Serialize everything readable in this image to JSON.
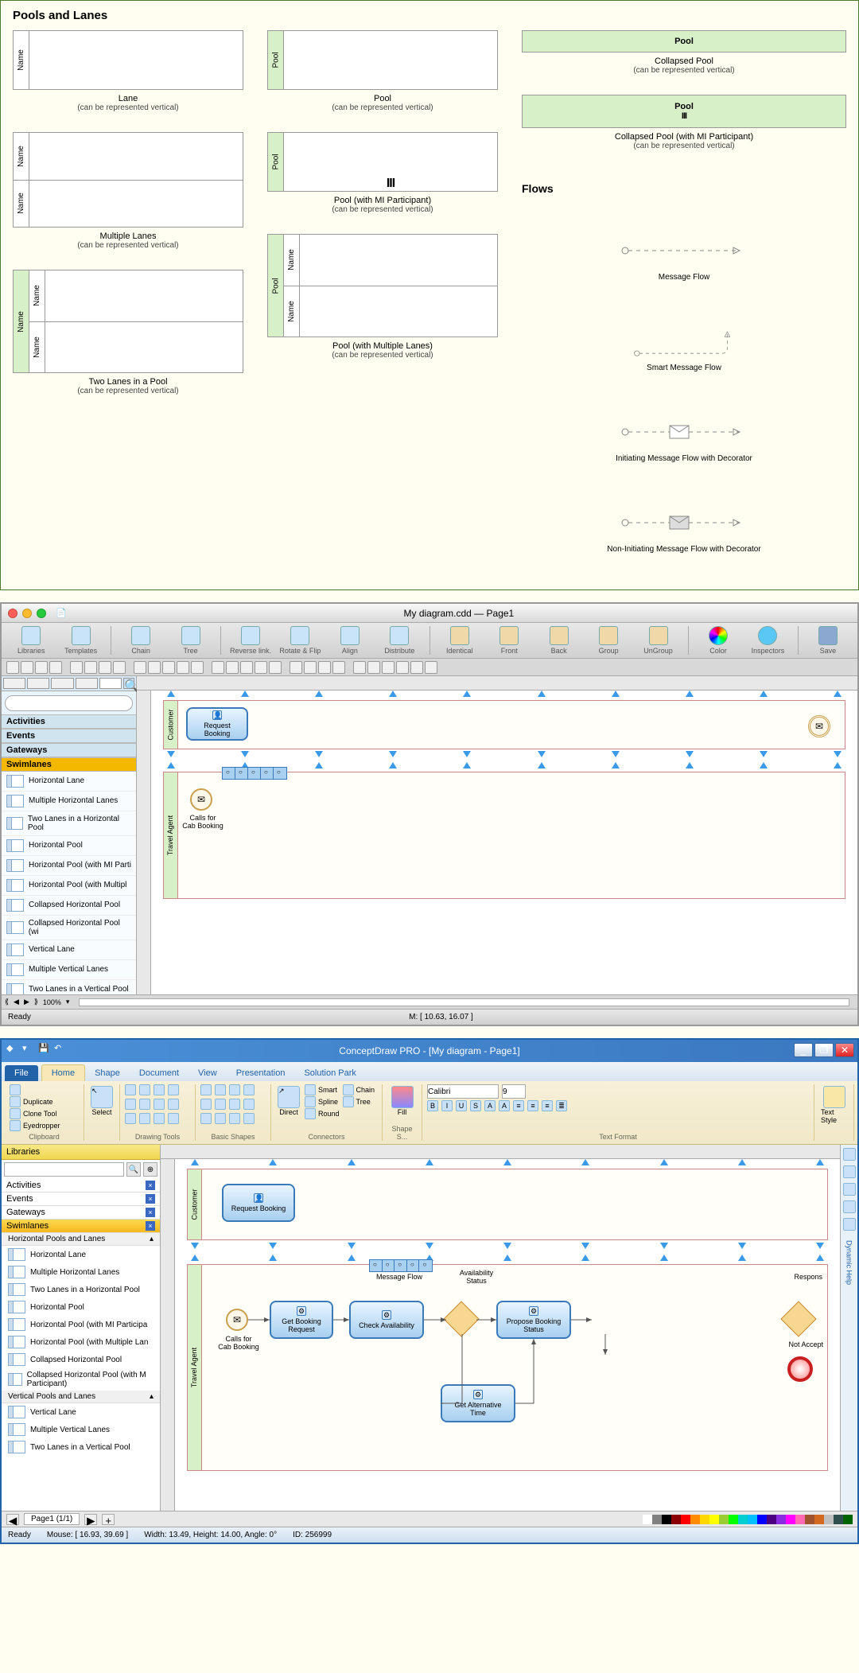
{
  "reference": {
    "title": "Pools and Lanes",
    "canRep": "(can be represented vertical)",
    "shapes": {
      "lane": "Lane",
      "multiLanes": "Multiple Lanes",
      "twoLanesPool": "Two Lanes in a Pool",
      "pool": "Pool",
      "poolMI": "Pool (with MI Participant)",
      "poolMultiLanes": "Pool (with Multiple Lanes)",
      "collapsedPool": "Collapsed Pool",
      "collapsedPoolMI": "Collapsed Pool (with MI Participant)"
    },
    "nameLabel": "Name",
    "poolLabel": "Pool",
    "flowsTitle": "Flows",
    "flows": {
      "msg": "Message Flow",
      "smart": "Smart Message Flow",
      "initDec": "Initiating Message Flow with Decorator",
      "nonInitDec": "Non-Initiating Message Flow with Decorator"
    }
  },
  "mac": {
    "title": "My diagram.cdd — Page1",
    "trafficColors": [
      "#ff5f56",
      "#ffbd2e",
      "#27c93f"
    ],
    "toolbar": [
      "Libraries",
      "Templates",
      "Chain",
      "Tree",
      "Reverse link.",
      "Rotate & Flip",
      "Align",
      "Distribute",
      "Identical",
      "Front",
      "Back",
      "Group",
      "UnGroup",
      "Color",
      "Inspectors",
      "Save"
    ],
    "libs": [
      "Activities",
      "Events",
      "Gateways",
      "Swimlanes"
    ],
    "activeLib": "Swimlanes",
    "shapes": [
      "Horizontal Lane",
      "Multiple Horizontal Lanes",
      "Two Lanes in a Horizontal Pool",
      "Horizontal Pool",
      "Horizontal Pool (with MI Parti",
      "Horizontal Pool (with Multipl",
      "Collapsed Horizontal Pool",
      "Collapsed Horizontal Pool (wi",
      "Vertical Lane",
      "Multiple Vertical Lanes",
      "Two Lanes in a Vertical Pool"
    ],
    "lane1": "Customer",
    "lane2": "Travel Agent",
    "task1": "Request Booking",
    "event1": "✉",
    "event2Label1": "Calls for",
    "event2Label2": "Cab Booking",
    "zoom": "100%",
    "ready": "Ready",
    "mouse": "M: [ 10.63, 16.07 ]"
  },
  "win": {
    "title": "ConceptDraw PRO - [My diagram - Page1]",
    "tabs": [
      "File",
      "Home",
      "Shape",
      "Document",
      "View",
      "Presentation",
      "Solution Park"
    ],
    "activeTab": "Home",
    "ribbon": {
      "clipboard": {
        "title": "Clipboard",
        "items": [
          "Duplicate",
          "Clone Tool",
          "Eyedropper"
        ]
      },
      "select": "Select",
      "drawTitle": "Drawing Tools",
      "basicTitle": "Basic Shapes",
      "direct": "Direct",
      "connItems": [
        "Smart",
        "Spline",
        "Round"
      ],
      "connTitle": "Connectors",
      "connRight": [
        "Chain",
        "Tree"
      ],
      "fill": "Fill",
      "shapeTitle": "Shape S...",
      "font": "Calibri",
      "fontSize": "9",
      "textFmtTitle": "Text Format",
      "textStyle": "Text Style"
    },
    "libTitle": "Libraries",
    "libs": [
      "Activities",
      "Events",
      "Gateways",
      "Swimlanes"
    ],
    "activeLib": "Swimlanes",
    "libSub1": "Horizontal Pools and Lanes",
    "libSub2": "Vertical Pools and Lanes",
    "shapesH": [
      "Horizontal Lane",
      "Multiple Horizontal Lanes",
      "Two Lanes in a Horizontal Pool",
      "Horizontal Pool",
      "Horizontal Pool (with MI Participa",
      "Horizontal Pool (with Multiple Lan",
      "Collapsed Horizontal Pool",
      "Collapsed Horizontal Pool (with M Participant)"
    ],
    "shapesV": [
      "Vertical Lane",
      "Multiple Vertical Lanes",
      "Two Lanes in a Vertical Pool"
    ],
    "lane1": "Customer",
    "lane2": "Travel Agent",
    "tasks": {
      "req": "Request Booking",
      "getReq": "Get Booking Request",
      "check": "Check Availability",
      "propose": "Propose Booking Status",
      "getAlt": "Get Alternative Time"
    },
    "labels": {
      "calls1": "Calls for",
      "calls2": "Cab Booking",
      "msgFlow": "Message Flow",
      "avail": "Availability Status",
      "respons": "Respons",
      "notAccept": "Not Accept"
    },
    "page": "Page1 (1/1)",
    "rightPaneText": "Dynamic Help",
    "status": {
      "ready": "Ready",
      "mouse": "Mouse: [ 16.93, 39.69 ]",
      "dims": "Width: 13.49,  Height: 14.00,  Angle: 0°",
      "id": "ID: 256999"
    },
    "colorStrip": [
      "#ffffff",
      "#808080",
      "#000000",
      "#8b0000",
      "#ff0000",
      "#ff8c00",
      "#ffd700",
      "#ffff00",
      "#9acd32",
      "#00ff00",
      "#00ced1",
      "#00bfff",
      "#0000ff",
      "#4b0082",
      "#8a2be2",
      "#ff00ff",
      "#ff69b4",
      "#a0522d",
      "#d2691e",
      "#c0c0c0",
      "#2f4f4f",
      "#006400"
    ]
  }
}
